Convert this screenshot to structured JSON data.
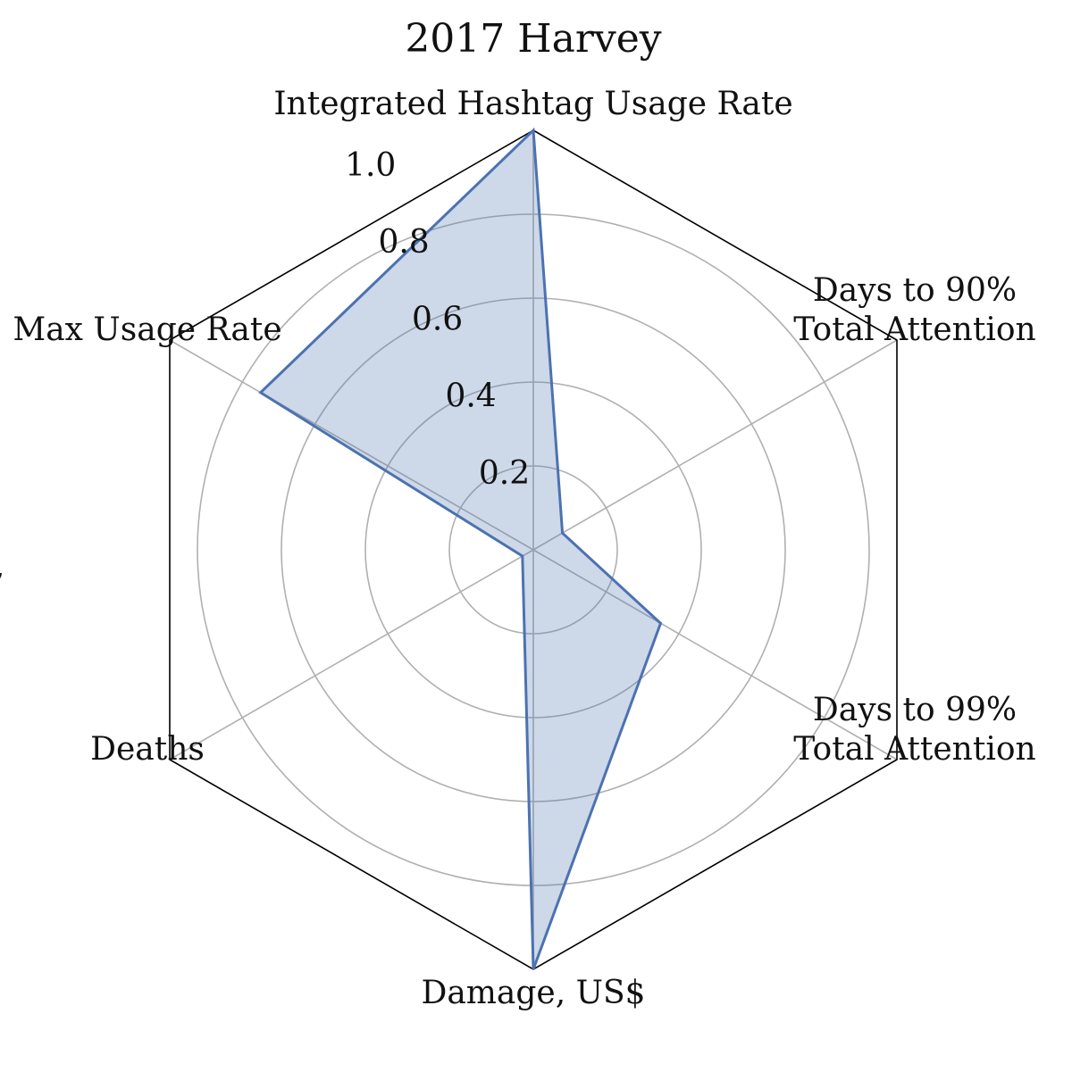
{
  "chart_data": {
    "type": "radar",
    "title": "2017 Harvey",
    "axes": [
      {
        "label": [
          "Integrated Hashtag Usage Rate"
        ]
      },
      {
        "label": [
          "Days to 90%",
          "Total Attention"
        ]
      },
      {
        "label": [
          "Days to 99%",
          "Total Attention"
        ]
      },
      {
        "label": [
          "Damage, US$"
        ]
      },
      {
        "label": [
          "Deaths"
        ]
      },
      {
        "label": [
          "Max Usage Rate"
        ]
      }
    ],
    "rlim": [
      0,
      1.0
    ],
    "rticks": [
      0.2,
      0.4,
      0.6,
      0.8,
      1.0
    ],
    "rtick_labels": [
      "0.2",
      "0.4",
      "0.6",
      "0.8",
      "1.0"
    ],
    "series": [
      {
        "values": [
          1.0,
          0.08,
          0.35,
          1.0,
          0.03,
          0.75
        ],
        "color": "#4c72b0"
      }
    ],
    "grid": true,
    "stray_mark": ","
  }
}
